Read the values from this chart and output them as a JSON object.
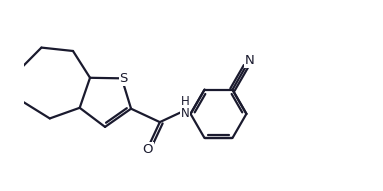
{
  "bg_color": "#ffffff",
  "line_color": "#1a1a2e",
  "line_width": 1.6,
  "figsize": [
    3.83,
    1.91
  ],
  "dpi": 100,
  "xlim": [
    0.0,
    7.6
  ],
  "ylim": [
    -0.5,
    3.8
  ]
}
